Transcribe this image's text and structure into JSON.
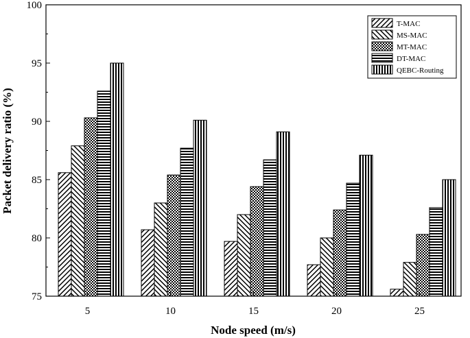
{
  "chart_data": {
    "type": "bar",
    "title": "",
    "xlabel": "Node speed (m/s)",
    "ylabel": "Packet delivery ratio (%)",
    "categories": [
      "5",
      "10",
      "15",
      "20",
      "25"
    ],
    "ylim": [
      75,
      100
    ],
    "yticks": [
      "75",
      "80",
      "85",
      "90",
      "95",
      "100"
    ],
    "grid": false,
    "legend_position": "top-right",
    "series": [
      {
        "name": "T-MAC",
        "pattern": "diag-right",
        "values": [
          85.6,
          80.7,
          79.7,
          77.7,
          75.6
        ]
      },
      {
        "name": "MS-MAC",
        "pattern": "diag-left",
        "values": [
          87.9,
          83.0,
          82.0,
          80.0,
          77.9
        ]
      },
      {
        "name": "MT-MAC",
        "pattern": "checker",
        "values": [
          90.3,
          85.4,
          84.4,
          82.4,
          80.3
        ]
      },
      {
        "name": "DT-MAC",
        "pattern": "horizontal",
        "values": [
          92.6,
          87.7,
          86.7,
          84.7,
          82.6
        ]
      },
      {
        "name": "QEBC-Routing",
        "pattern": "vertical",
        "values": [
          95.0,
          90.1,
          89.1,
          87.1,
          85.0
        ]
      }
    ]
  }
}
